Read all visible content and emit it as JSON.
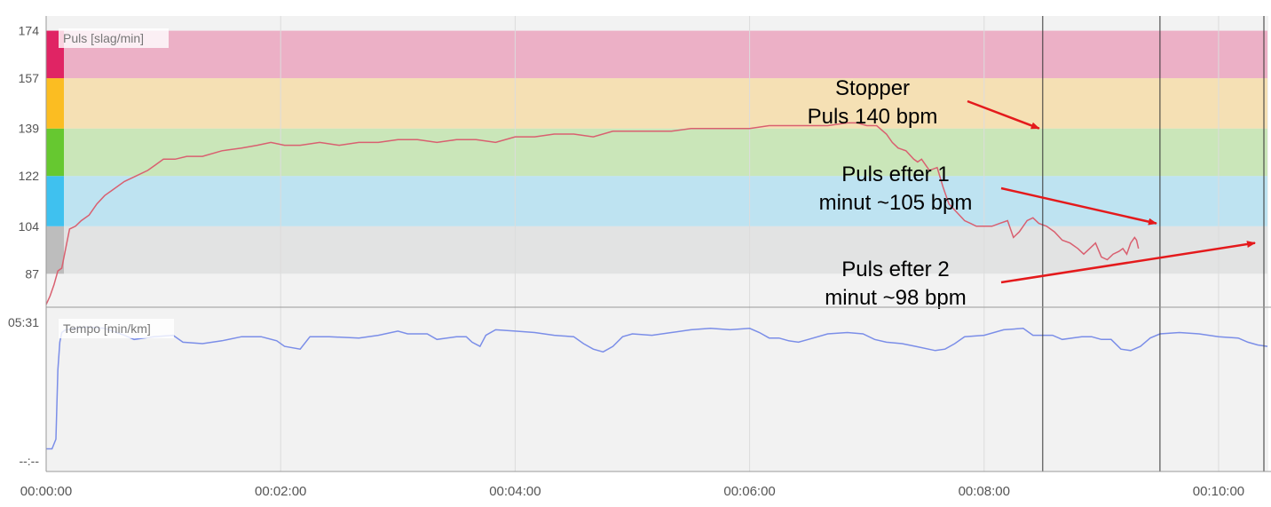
{
  "chart_data": [
    {
      "type": "area",
      "title": "Puls [slag/min]",
      "y_ticks": [
        174,
        157,
        139,
        122,
        104,
        87
      ],
      "ylim": [
        75,
        178
      ],
      "xlim_seconds": [
        0,
        625
      ],
      "zones": [
        {
          "from": 87,
          "to": 104,
          "color": "#e2e3e3",
          "marker": "#bdbdbd"
        },
        {
          "from": 104,
          "to": 122,
          "color": "#bee3f1",
          "marker": "#3fc1ef"
        },
        {
          "from": 122,
          "to": 139,
          "color": "#cae6b9",
          "marker": "#66c830"
        },
        {
          "from": 139,
          "to": 157,
          "color": "#f5e0b4",
          "marker": "#fbbd22"
        },
        {
          "from": 157,
          "to": 174,
          "color": "#ecb0c6",
          "marker": "#e02464"
        }
      ],
      "series": [
        {
          "name": "Puls",
          "color": "#d96070",
          "points": [
            [
              0,
              76
            ],
            [
              2,
              79
            ],
            [
              4,
              83
            ],
            [
              6,
              88
            ],
            [
              8,
              89
            ],
            [
              10,
              96
            ],
            [
              12,
              103
            ],
            [
              15,
              104
            ],
            [
              18,
              106
            ],
            [
              22,
              108
            ],
            [
              26,
              112
            ],
            [
              30,
              115
            ],
            [
              34,
              117
            ],
            [
              40,
              120
            ],
            [
              46,
              122
            ],
            [
              52,
              124
            ],
            [
              56,
              126
            ],
            [
              60,
              128
            ],
            [
              66,
              128
            ],
            [
              72,
              129
            ],
            [
              80,
              129
            ],
            [
              90,
              131
            ],
            [
              100,
              132
            ],
            [
              108,
              133
            ],
            [
              115,
              134
            ],
            [
              122,
              133
            ],
            [
              130,
              133
            ],
            [
              140,
              134
            ],
            [
              150,
              133
            ],
            [
              160,
              134
            ],
            [
              170,
              134
            ],
            [
              180,
              135
            ],
            [
              190,
              135
            ],
            [
              200,
              134
            ],
            [
              210,
              135
            ],
            [
              220,
              135
            ],
            [
              230,
              134
            ],
            [
              240,
              136
            ],
            [
              250,
              136
            ],
            [
              260,
              137
            ],
            [
              270,
              137
            ],
            [
              280,
              136
            ],
            [
              290,
              138
            ],
            [
              300,
              138
            ],
            [
              310,
              138
            ],
            [
              320,
              138
            ],
            [
              330,
              139
            ],
            [
              340,
              139
            ],
            [
              350,
              139
            ],
            [
              360,
              139
            ],
            [
              370,
              140
            ],
            [
              380,
              140
            ],
            [
              390,
              140
            ],
            [
              400,
              140
            ],
            [
              410,
              141
            ],
            [
              415,
              141
            ],
            [
              420,
              140
            ],
            [
              425,
              140
            ],
            [
              430,
              137
            ],
            [
              433,
              134
            ],
            [
              436,
              132
            ],
            [
              440,
              131
            ],
            [
              444,
              128
            ],
            [
              446,
              127
            ],
            [
              448,
              128
            ],
            [
              452,
              124
            ],
            [
              456,
              125
            ],
            [
              459,
              118
            ],
            [
              462,
              112
            ],
            [
              466,
              109
            ],
            [
              470,
              106
            ],
            [
              473,
              105
            ],
            [
              476,
              104
            ],
            [
              480,
              104
            ],
            [
              484,
              104
            ],
            [
              488,
              105
            ],
            [
              492,
              106
            ],
            [
              495,
              100
            ],
            [
              498,
              102
            ],
            [
              502,
              106
            ],
            [
              505,
              107
            ],
            [
              508,
              105
            ],
            [
              512,
              104
            ],
            [
              516,
              102
            ],
            [
              520,
              99
            ],
            [
              524,
              98
            ],
            [
              528,
              96
            ],
            [
              531,
              94
            ],
            [
              534,
              96
            ],
            [
              537,
              98
            ],
            [
              540,
              93
            ],
            [
              543,
              92
            ],
            [
              546,
              94
            ],
            [
              549,
              95
            ],
            [
              551,
              96
            ],
            [
              553,
              94
            ],
            [
              555,
              98
            ],
            [
              557,
              100
            ],
            [
              558,
              99
            ],
            [
              559,
              96
            ]
          ]
        }
      ]
    },
    {
      "type": "line",
      "title": "Tempo [min/km]",
      "y_ticks": [
        "05:31",
        "--:--"
      ],
      "x_ticks": [
        "00:00:00",
        "00:02:00",
        "00:04:00",
        "00:06:00",
        "00:08:00",
        "00:10:00"
      ],
      "x_tick_seconds": [
        0,
        120,
        240,
        360,
        480,
        600
      ],
      "ylim": [
        0,
        1
      ],
      "xlim_seconds": [
        0,
        625
      ],
      "series": [
        {
          "name": "Tempo",
          "color": "#7b8ee8",
          "points": [
            [
              0,
              0.08
            ],
            [
              3,
              0.08
            ],
            [
              5,
              0.15
            ],
            [
              6,
              0.65
            ],
            [
              7,
              0.85
            ],
            [
              8,
              0.92
            ],
            [
              10,
              0.94
            ],
            [
              20,
              0.96
            ],
            [
              30,
              0.95
            ],
            [
              40,
              0.9
            ],
            [
              45,
              0.87
            ],
            [
              55,
              0.89
            ],
            [
              65,
              0.9
            ],
            [
              70,
              0.85
            ],
            [
              80,
              0.84
            ],
            [
              90,
              0.86
            ],
            [
              100,
              0.89
            ],
            [
              110,
              0.89
            ],
            [
              118,
              0.86
            ],
            [
              122,
              0.82
            ],
            [
              130,
              0.8
            ],
            [
              135,
              0.89
            ],
            [
              145,
              0.89
            ],
            [
              160,
              0.88
            ],
            [
              170,
              0.9
            ],
            [
              180,
              0.93
            ],
            [
              185,
              0.91
            ],
            [
              195,
              0.91
            ],
            [
              200,
              0.87
            ],
            [
              210,
              0.89
            ],
            [
              215,
              0.89
            ],
            [
              218,
              0.85
            ],
            [
              222,
              0.82
            ],
            [
              225,
              0.9
            ],
            [
              230,
              0.94
            ],
            [
              240,
              0.93
            ],
            [
              250,
              0.92
            ],
            [
              260,
              0.9
            ],
            [
              270,
              0.89
            ],
            [
              275,
              0.84
            ],
            [
              280,
              0.8
            ],
            [
              285,
              0.78
            ],
            [
              290,
              0.82
            ],
            [
              295,
              0.89
            ],
            [
              300,
              0.91
            ],
            [
              310,
              0.9
            ],
            [
              320,
              0.92
            ],
            [
              330,
              0.94
            ],
            [
              340,
              0.95
            ],
            [
              350,
              0.94
            ],
            [
              360,
              0.95
            ],
            [
              365,
              0.92
            ],
            [
              370,
              0.88
            ],
            [
              375,
              0.88
            ],
            [
              380,
              0.86
            ],
            [
              385,
              0.85
            ],
            [
              390,
              0.87
            ],
            [
              400,
              0.91
            ],
            [
              410,
              0.92
            ],
            [
              418,
              0.91
            ],
            [
              424,
              0.87
            ],
            [
              430,
              0.85
            ],
            [
              438,
              0.84
            ],
            [
              445,
              0.82
            ],
            [
              455,
              0.79
            ],
            [
              460,
              0.8
            ],
            [
              465,
              0.84
            ],
            [
              470,
              0.89
            ],
            [
              480,
              0.9
            ],
            [
              490,
              0.94
            ],
            [
              500,
              0.95
            ],
            [
              505,
              0.9
            ],
            [
              515,
              0.9
            ],
            [
              520,
              0.87
            ],
            [
              530,
              0.89
            ],
            [
              535,
              0.89
            ],
            [
              540,
              0.87
            ],
            [
              545,
              0.87
            ],
            [
              550,
              0.8
            ],
            [
              555,
              0.79
            ],
            [
              560,
              0.82
            ],
            [
              565,
              0.88
            ],
            [
              570,
              0.91
            ],
            [
              580,
              0.92
            ],
            [
              590,
              0.91
            ],
            [
              600,
              0.89
            ],
            [
              610,
              0.88
            ],
            [
              615,
              0.85
            ],
            [
              620,
              0.83
            ],
            [
              625,
              0.82
            ],
            [
              490,
              0.94
            ]
          ]
        }
      ]
    }
  ],
  "annotations": [
    {
      "lines": [
        "Stopper",
        "Puls 140 bpm"
      ],
      "target_seconds": 510,
      "target_value": 139
    },
    {
      "lines": [
        "Puls efter 1",
        "minut ~105 bpm"
      ],
      "target_seconds": 570,
      "target_value": 105
    },
    {
      "lines": [
        "Puls efter 2",
        "minut ~98 bpm"
      ],
      "target_seconds": 628,
      "target_value": 98
    }
  ],
  "markers_seconds": [
    510,
    570,
    628
  ],
  "colors": {
    "arrow": "#e41a1c",
    "marker_line": "#333333",
    "grid": "#dcdcdc",
    "plot_bg": "#f2f2f2"
  }
}
